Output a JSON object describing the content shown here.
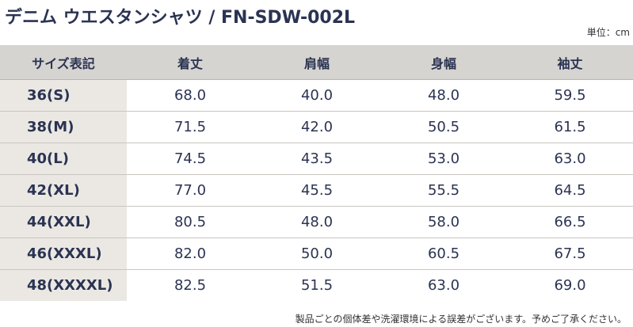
{
  "header": {
    "title": "デニム ウエスタンシャツ / FN-SDW-002L",
    "unit": "単位：cm"
  },
  "table": {
    "columns": [
      "サイズ表記",
      "着丈",
      "肩幅",
      "身幅",
      "袖丈"
    ],
    "rows": [
      [
        "36(S)",
        "68.0",
        "40.0",
        "48.0",
        "59.5"
      ],
      [
        "38(M)",
        "71.5",
        "42.0",
        "50.5",
        "61.5"
      ],
      [
        "40(L)",
        "74.5",
        "43.5",
        "53.0",
        "63.0"
      ],
      [
        "42(XL)",
        "77.0",
        "45.5",
        "55.5",
        "64.5"
      ],
      [
        "44(XXL)",
        "80.5",
        "48.0",
        "58.0",
        "66.5"
      ],
      [
        "46(XXXL)",
        "82.0",
        "50.0",
        "60.5",
        "67.5"
      ],
      [
        "48(XXXXL)",
        "82.5",
        "51.5",
        "63.0",
        "69.0"
      ]
    ]
  },
  "footer": {
    "note": "製品ごとの個体差や洗濯環境による誤差がございます。予めご了承ください。"
  }
}
